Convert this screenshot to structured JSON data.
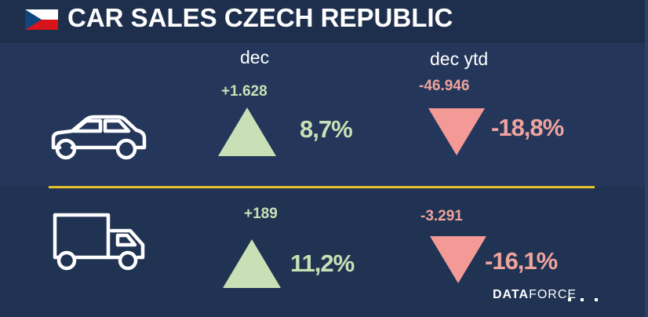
{
  "title": "CAR SALES CZECH REPUBLIC",
  "flag_icon": "czech-flag-icon",
  "columns": {
    "month": "dec",
    "ytd": "dec ytd"
  },
  "rows": [
    {
      "icon": "car-icon",
      "month": {
        "delta": "+1.628",
        "pct": "8,7%",
        "direction": "up"
      },
      "ytd": {
        "delta": "-46.946",
        "pct": "-18,8%",
        "direction": "down"
      }
    },
    {
      "icon": "truck-icon",
      "month": {
        "delta": "+189",
        "pct": "11,2%",
        "direction": "up"
      },
      "ytd": {
        "delta": "-3.291",
        "pct": "-16,1%",
        "direction": "down"
      }
    }
  ],
  "logo": {
    "bold": "DATA",
    "light": "FORCE"
  },
  "colors": {
    "positive": "#c9e0b6",
    "negative": "#f39a96",
    "divider": "#e6c02a",
    "background": "#1f3150"
  }
}
